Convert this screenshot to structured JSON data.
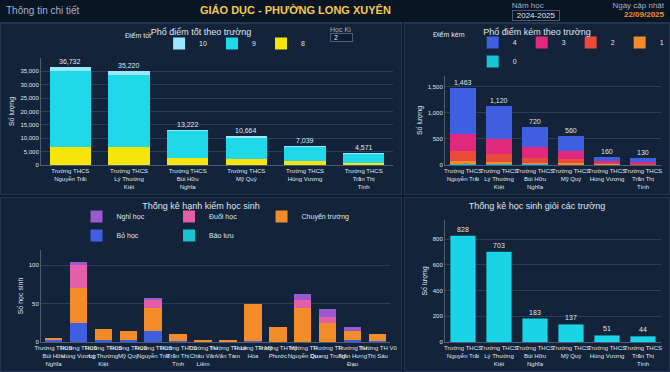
{
  "header": {
    "left": "Thông tin chi tiết",
    "title": "GIÁO DỤC - PHƯỜNG LONG XUYÊN",
    "year_label": "Năm học",
    "year": "2024-2025",
    "update_label": "Ngày cập nhật",
    "update_date": "22/09/2025",
    "semester_label": "Học Kì",
    "semester": "2"
  },
  "chart_data": [
    {
      "type": "bar",
      "title": "Phổ điểm tốt theo trường",
      "stacked": true,
      "legend": "top",
      "legend_title": "Điểm tốt",
      "y_label": "Số lượng",
      "grid": true,
      "categories": [
        "Trường THCS Nguyễn Trãi",
        "Trường THCS Lý Thường Kiệt",
        "Trường THCS Bùi Hữu Nghĩa",
        "Trường THCS Mỹ Quý",
        "Trường THCS Hùng Vương",
        "Trường THCS Trần Thị Tính"
      ],
      "series": [
        {
          "name": "8",
          "color": "#f5e50a",
          "values": [
            6800,
            6700,
            2600,
            2200,
            1500,
            900
          ]
        },
        {
          "name": "9",
          "color": "#1fd8e8",
          "values": [
            28400,
            27000,
            10000,
            8000,
            5200,
            3400
          ]
        },
        {
          "name": "10",
          "color": "#9be7ff",
          "values": [
            1532,
            1520,
            622,
            464,
            339,
            271
          ]
        }
      ],
      "totals": [
        {
          "value": 36732,
          "label": "36,732"
        },
        {
          "value": 35220,
          "label": "35,220"
        },
        {
          "value": 13222,
          "label": "13,222"
        },
        {
          "value": 10664,
          "label": "10,664"
        },
        {
          "value": 7039,
          "label": "7,039"
        },
        {
          "value": 4571,
          "label": "4,571"
        }
      ],
      "ylim": [
        0,
        40000
      ],
      "yticks": [
        0,
        {
          "value": 5000,
          "label": "5,000"
        },
        {
          "value": 10000,
          "label": "10,000"
        },
        {
          "value": 15000,
          "label": "15,000"
        },
        {
          "value": 20000,
          "label": "20,000"
        },
        {
          "value": 25000,
          "label": "25,000"
        },
        {
          "value": 30000,
          "label": "30,000"
        },
        {
          "value": 35000,
          "label": "35,000"
        }
      ]
    },
    {
      "type": "bar",
      "title": "Phổ điểm kém theo trường",
      "stacked": true,
      "legend": "top",
      "legend_title": "Điểm kém",
      "y_label": "Số lượng",
      "grid": true,
      "categories": [
        "Trường THCS Nguyễn Trãi",
        "Trường THCS Lý Thường Kiệt",
        "Trường THCS Bùi Hữu Nghĩa",
        "Trường THCS Mỹ Quý",
        "Trường THCS Hùng Vương",
        "Trường THCS Trần Thị Tính"
      ],
      "series": [
        {
          "name": "0",
          "color": "#19c3d0",
          "values": [
            20,
            15,
            10,
            8,
            3,
            2
          ]
        },
        {
          "name": "1",
          "color": "#f28c28",
          "values": [
            60,
            50,
            30,
            25,
            7,
            5
          ]
        },
        {
          "name": "2",
          "color": "#e84a3c",
          "values": [
            180,
            150,
            100,
            80,
            20,
            15
          ]
        },
        {
          "name": "3",
          "color": "#e0287c",
          "values": [
            335,
            280,
            200,
            150,
            40,
            33
          ]
        },
        {
          "name": "4",
          "color": "#3f5fe0",
          "values": [
            868,
            625,
            380,
            297,
            90,
            75
          ]
        }
      ],
      "totals": [
        {
          "value": 1463,
          "label": "1,463"
        },
        {
          "value": 1120,
          "label": "1,120"
        },
        720,
        560,
        160,
        130
      ],
      "ylim": [
        0,
        1700
      ],
      "yticks": [
        0,
        500,
        {
          "value": 1000,
          "label": "1,000"
        },
        {
          "value": 1500,
          "label": "1,500"
        }
      ]
    },
    {
      "type": "bar",
      "title": "Thống kê hạnh kiểm học sinh",
      "stacked": true,
      "legend": "top",
      "y_label": "Số học sinh",
      "grid": true,
      "categories": [
        "Trường THCS Bùi Hữu Nghĩa",
        "Trường THCS Hùng Vương",
        "Trường THCS Lý Thường Kiệt",
        "Trường THCS Mỹ Quý",
        "Trường THCS Nguyễn Trãi",
        "Trường THCS Trần Thị Tính",
        "Trường TH Châu Văn Liêm",
        "Trường TH Lê Văn Tám",
        "Trường TH Mỹ Hòa",
        "Trường TH Mỹ Phước",
        "Trường TH Nguyễn Du",
        "Trường TH Quang Trung",
        "Trường TH Trần Hưng Đạo",
        "Trường TH Võ Thị Sáu"
      ],
      "series": [
        {
          "name": "Bảo lưu",
          "color": "#19c3d0",
          "values": [
            0,
            0,
            0,
            0,
            0,
            0,
            0,
            0,
            0,
            0,
            0,
            0,
            0,
            0
          ]
        },
        {
          "name": "Bỏ học",
          "color": "#3f5fe0",
          "values": [
            2,
            25,
            3,
            2,
            15,
            1,
            0,
            0,
            1,
            0,
            0,
            0,
            2,
            1
          ]
        },
        {
          "name": "Chuyển trường",
          "color": "#f28c28",
          "values": [
            3,
            45,
            14,
            12,
            30,
            10,
            2,
            3,
            48,
            20,
            45,
            25,
            12,
            10
          ]
        },
        {
          "name": "Đuổi học",
          "color": "#e35fa8",
          "values": [
            0,
            30,
            0,
            0,
            10,
            0,
            0,
            0,
            0,
            0,
            10,
            8,
            0,
            0
          ]
        },
        {
          "name": "Nghỉ học",
          "color": "#9b59d0",
          "values": [
            0,
            5,
            0,
            0,
            2,
            0,
            0,
            0,
            0,
            0,
            8,
            10,
            5,
            0
          ]
        }
      ],
      "ylim": [
        0,
        120
      ],
      "yticks": [
        0,
        50,
        100
      ]
    },
    {
      "type": "bar",
      "title": "Thống kê học sinh giỏi các trường",
      "data_labels": true,
      "y_label": "Số lượng",
      "grid": true,
      "color": "#19d3e6",
      "categories": [
        "Trường THCS Nguyễn Trãi",
        "Trường THCS Lý Thường Kiệt",
        "Trường THCS Bùi Hữu Nghĩa",
        "Trường THCS Mỹ Quý",
        "Trường THCS Hùng Vương",
        "Trường THCS Trần Thị Tính"
      ],
      "values": [
        828,
        703,
        183,
        137,
        51,
        44
      ],
      "ylim": [
        0,
        950
      ],
      "yticks": [
        0,
        200,
        400,
        600,
        800
      ]
    }
  ]
}
